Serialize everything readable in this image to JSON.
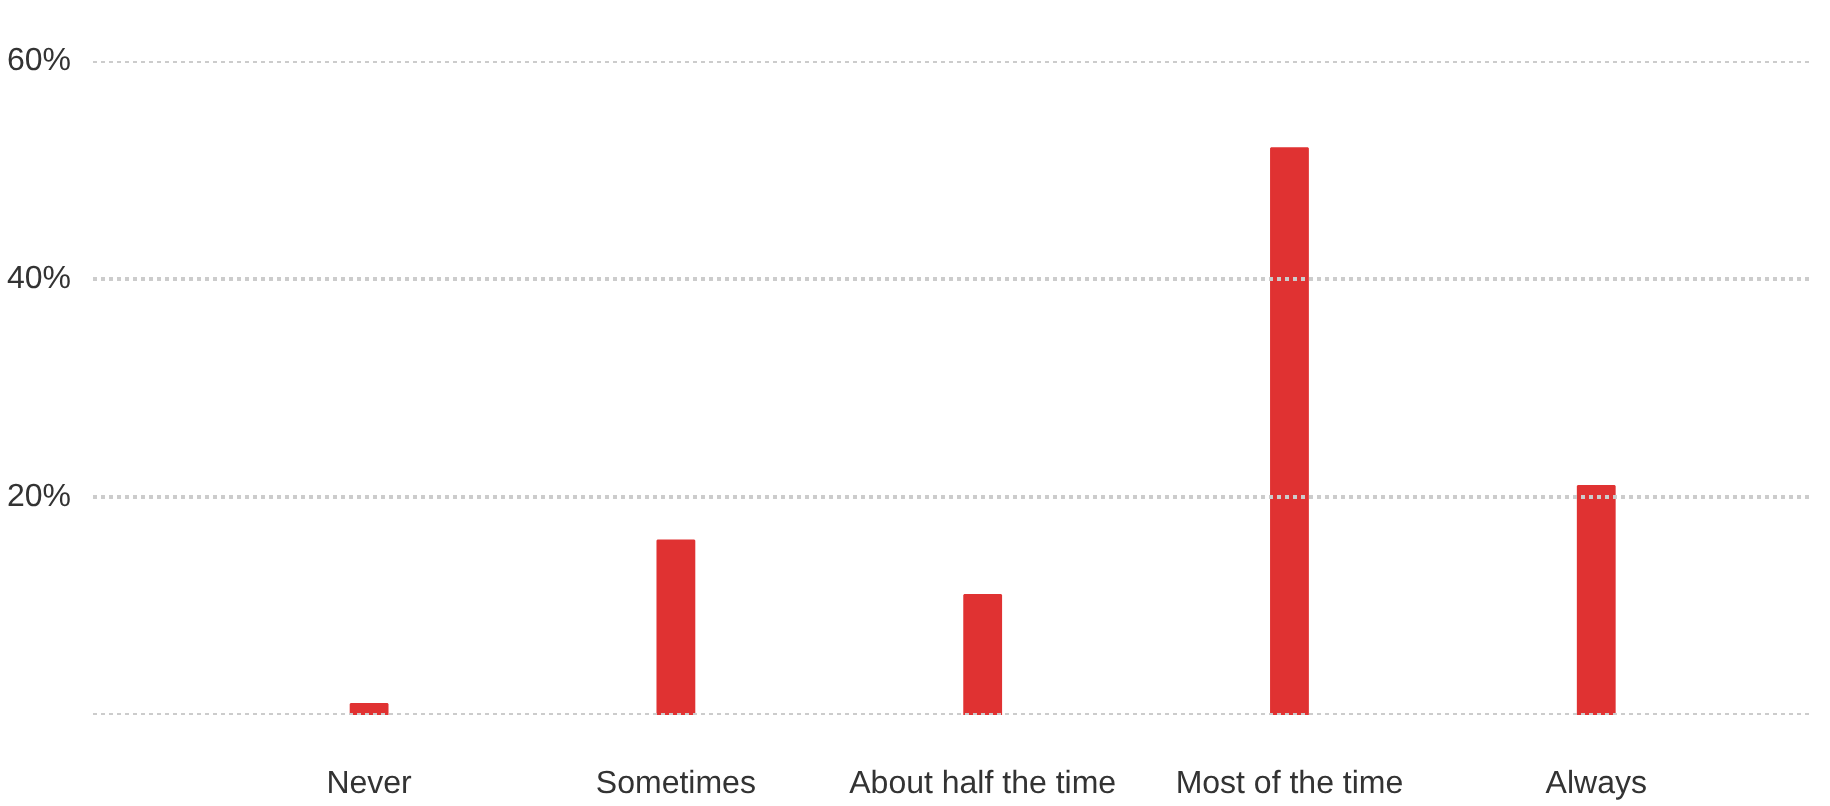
{
  "chart_data": {
    "type": "bar",
    "categories": [
      "Never",
      "Sometimes",
      "About half the time",
      "Most of the time",
      "Always"
    ],
    "values": [
      1,
      16,
      11,
      52,
      21
    ],
    "color": "#e03232",
    "ylim": [
      0,
      60
    ],
    "yticks": [
      {
        "value": 0,
        "label": null
      },
      {
        "value": 20,
        "label": "20%"
      },
      {
        "value": 40,
        "label": "40%"
      },
      {
        "value": 60,
        "label": "60%"
      }
    ],
    "grid": "y"
  }
}
